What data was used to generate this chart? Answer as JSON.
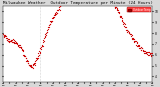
{
  "title": "Milwaukee Weather  Outdoor Temperature per Minute (24 Hours)",
  "bg_color": "#d8d8d8",
  "plot_bg": "#ffffff",
  "line_color": "#cc0000",
  "marker_size": 0.8,
  "ylim": [
    3.5,
    10.5
  ],
  "yticks": [
    4,
    5,
    6,
    7,
    8,
    9,
    10
  ],
  "legend_label": "Outdoor Temp",
  "legend_color": "#cc0000",
  "vline_x": 360,
  "total_minutes": 1440,
  "seed": 7,
  "title_fontsize": 3.0
}
